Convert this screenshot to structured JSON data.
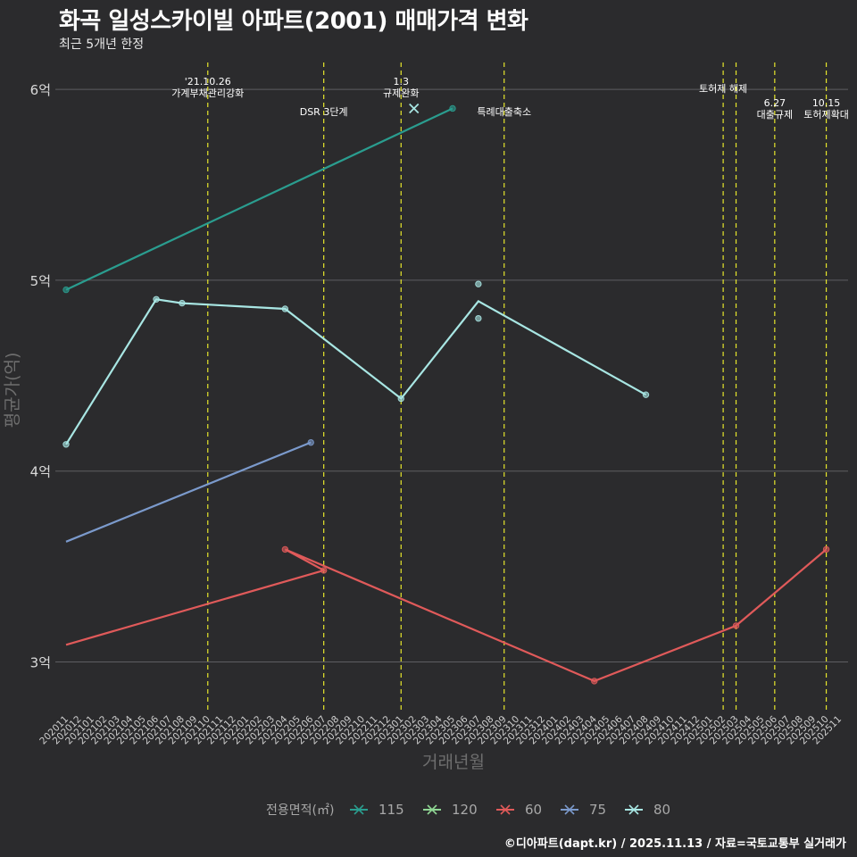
{
  "header": {
    "title": "화곡 일성스카이빌 아파트(2001) 매매가격 변화",
    "subtitle": "최근 5개년 한정",
    "caption": "©디아파트(dapt.kr) / 2025.11.13 / 자료=국토교통부 실거래가"
  },
  "chart_data": {
    "type": "line",
    "title": "화곡 일성스카이빌 아파트(2001) 매매가격 변화",
    "subtitle": "최근 5개년 한정",
    "xlabel": "거래년월",
    "ylabel": "평균가(억)",
    "ylim": [
      2.75,
      6.15
    ],
    "y_ticks": [
      3,
      4,
      5,
      6
    ],
    "y_tick_labels": [
      "3억",
      "4억",
      "5억",
      "6억"
    ],
    "categories": [
      "202011",
      "202012",
      "202101",
      "202102",
      "202103",
      "202104",
      "202105",
      "202106",
      "202107",
      "202108",
      "202109",
      "202110",
      "202111",
      "202112",
      "202201",
      "202202",
      "202203",
      "202204",
      "202205",
      "202206",
      "202207",
      "202208",
      "202209",
      "202210",
      "202211",
      "202212",
      "202301",
      "202302",
      "202303",
      "202304",
      "202305",
      "202306",
      "202307",
      "202308",
      "202309",
      "202310",
      "202311",
      "202312",
      "202401",
      "202402",
      "202403",
      "202404",
      "202405",
      "202406",
      "202407",
      "202408",
      "202409",
      "202410",
      "202411",
      "202412",
      "202501",
      "202502",
      "202503",
      "202504",
      "202505",
      "202506",
      "202507",
      "202508",
      "202509",
      "202510",
      "202511"
    ],
    "legend": {
      "title": "전용면적(㎡)",
      "position": "bottom"
    },
    "series": [
      {
        "name": "115",
        "color": "#2a9d8f",
        "line": [
          {
            "x": "202011",
            "y": 4.95
          },
          {
            "x": "202305",
            "y": 5.9
          }
        ],
        "points": [
          {
            "x": "202011",
            "y": 4.95
          },
          {
            "x": "202305",
            "y": 5.9
          }
        ]
      },
      {
        "name": "120",
        "color": "#8fd694",
        "line": [],
        "points": []
      },
      {
        "name": "60",
        "color": "#e05a5a",
        "line": [
          {
            "x": "202011",
            "y": 3.09
          },
          {
            "x": "202207",
            "y": 3.48
          },
          {
            "x": "202204",
            "y": 3.59
          },
          {
            "x": "202404",
            "y": 2.9
          },
          {
            "x": "202503",
            "y": 3.19
          },
          {
            "x": "202510",
            "y": 3.59
          }
        ],
        "points": [
          {
            "x": "202207",
            "y": 3.48
          },
          {
            "x": "202204",
            "y": 3.59
          },
          {
            "x": "202404",
            "y": 2.9
          },
          {
            "x": "202503",
            "y": 3.19
          },
          {
            "x": "202510",
            "y": 3.59
          }
        ]
      },
      {
        "name": "75",
        "color": "#7b9acc",
        "line": [
          {
            "x": "202011",
            "y": 3.63
          },
          {
            "x": "202206",
            "y": 4.15
          }
        ],
        "points": [
          {
            "x": "202206",
            "y": 4.15
          }
        ]
      },
      {
        "name": "80",
        "color": "#a8e6e3",
        "line": [
          {
            "x": "202011",
            "y": 4.14
          },
          {
            "x": "202106",
            "y": 4.9
          },
          {
            "x": "202108",
            "y": 4.88
          },
          {
            "x": "202204",
            "y": 4.85
          },
          {
            "x": "202301",
            "y": 4.38
          },
          {
            "x": "202307",
            "y": 4.89
          },
          {
            "x": "202408",
            "y": 4.4
          }
        ],
        "points": [
          {
            "x": "202011",
            "y": 4.14
          },
          {
            "x": "202106",
            "y": 4.9
          },
          {
            "x": "202108",
            "y": 4.88
          },
          {
            "x": "202204",
            "y": 4.85
          },
          {
            "x": "202301",
            "y": 4.38
          },
          {
            "x": "202307",
            "y": 4.98
          },
          {
            "x": "202307",
            "y": 4.8
          },
          {
            "x": "202408",
            "y": 4.4
          }
        ]
      }
    ],
    "special_points": [
      {
        "series": "80",
        "x": "202302",
        "y": 5.9,
        "marker": "x"
      }
    ],
    "events": [
      {
        "x": "202110",
        "label_lines": [
          "'21.10.26",
          "가계부채관리강화"
        ],
        "level": 1
      },
      {
        "x": "202207",
        "label_lines": [
          "DSR 3단계"
        ],
        "level": 3
      },
      {
        "x": "202301",
        "label_lines": [
          "1.3",
          "규제완화"
        ],
        "level": 1
      },
      {
        "x": "202309",
        "label_lines": [
          "특례대출축소"
        ],
        "level": 3
      },
      {
        "x": "202502",
        "label_lines": [
          "토허제 해제"
        ],
        "level": 2
      },
      {
        "x": "202503",
        "label_lines": [],
        "level": 0
      },
      {
        "x": "202506",
        "label_lines": [
          "6.27",
          "대출규제"
        ],
        "level": 4
      },
      {
        "x": "202510",
        "label_lines": [
          "10.15",
          "토허제확대"
        ],
        "level": 4
      }
    ]
  }
}
